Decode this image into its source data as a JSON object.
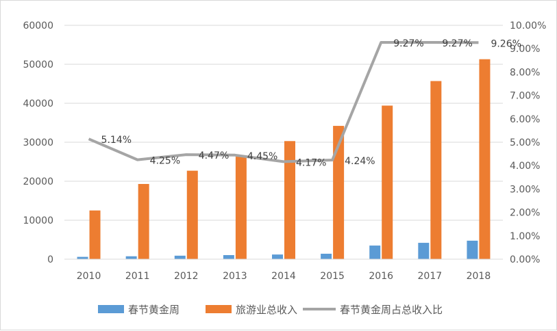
{
  "chart_data": {
    "type": "bar",
    "categories": [
      "2010",
      "2011",
      "2012",
      "2013",
      "2014",
      "2015",
      "2016",
      "2017",
      "2018"
    ],
    "series": [
      {
        "name": "春节黄金周",
        "type": "bar",
        "axis": "left",
        "color": "#5B9BD5",
        "values": [
          600,
          750,
          900,
          1050,
          1200,
          1400,
          3500,
          4200,
          4750
        ]
      },
      {
        "name": "旅游业总收入",
        "type": "bar",
        "axis": "left",
        "color": "#ED7D31",
        "values": [
          12500,
          19300,
          22700,
          26300,
          30300,
          34200,
          39400,
          45700,
          51300
        ]
      },
      {
        "name": "春节黄金周占总收入比",
        "type": "line",
        "axis": "right",
        "color": "#A5A5A5",
        "values": [
          5.14,
          4.25,
          4.47,
          4.45,
          4.17,
          4.24,
          9.27,
          9.27,
          9.26
        ],
        "labels": [
          "5.14%",
          "4.25%",
          "4.47%",
          "4.45%",
          "4.17%",
          "4.24%",
          "9.27%",
          "9.27%",
          "9.26%"
        ]
      }
    ],
    "y_left": {
      "ylim": [
        0,
        60000
      ],
      "ticks": [
        "0",
        "10000",
        "20000",
        "30000",
        "40000",
        "50000",
        "60000"
      ]
    },
    "y_right": {
      "ylim": [
        0,
        10
      ],
      "ticks": [
        "0.00%",
        "1.00%",
        "2.00%",
        "3.00%",
        "4.00%",
        "5.00%",
        "6.00%",
        "7.00%",
        "8.00%",
        "9.00%",
        "10.00%"
      ]
    },
    "grid": true,
    "legend": "bottom"
  }
}
